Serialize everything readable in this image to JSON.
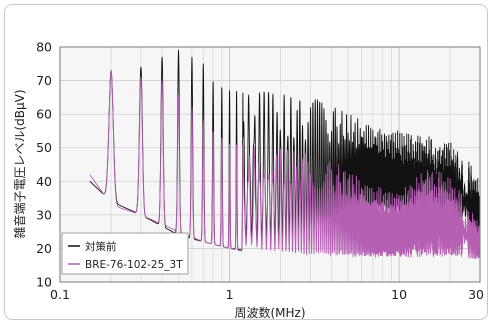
{
  "chart_data": {
    "type": "line",
    "title": "",
    "xlabel": "周波数(MHz)",
    "ylabel": "雑音端子電圧レベル(dBμV)",
    "x_scale": "log",
    "xlim": [
      0.1,
      30
    ],
    "ylim": [
      10,
      80
    ],
    "x_ticks": [
      0.1,
      1,
      10,
      30
    ],
    "x_tick_labels": [
      "0.1",
      "1",
      "10",
      "30"
    ],
    "y_ticks": [
      10,
      20,
      30,
      40,
      50,
      60,
      70,
      80
    ],
    "y_tick_labels": [
      "10",
      "20",
      "30",
      "40",
      "50",
      "60",
      "70",
      "80"
    ],
    "grid": true,
    "legend_position": "bottom-left",
    "series": [
      {
        "name": "対策前",
        "color": "#111111",
        "peaks_x": [
          0.2,
          0.3,
          0.4,
          0.5,
          0.6,
          0.7,
          0.8,
          0.9,
          1.0,
          1.1,
          1.5,
          2.0,
          3.0,
          5.0,
          10.0,
          15.0,
          20.0,
          30.0
        ],
        "peak_envelope_x": [
          0.15,
          0.2,
          0.3,
          0.4,
          0.5,
          0.6,
          0.7,
          0.8,
          0.9,
          1.0,
          1.5,
          2.0,
          2.5,
          3.0,
          4.0,
          5.0,
          7.0,
          10.0,
          15.0,
          20.0,
          25.0,
          30.0
        ],
        "peak_envelope_y": [
          47,
          73,
          74,
          77,
          79,
          77,
          75,
          70,
          68,
          67,
          67,
          66,
          65,
          65,
          63,
          60,
          57,
          55,
          54,
          53,
          47,
          40
        ],
        "floor_envelope_x": [
          0.15,
          0.2,
          0.3,
          0.5,
          0.7,
          1.0,
          1.5,
          2.0,
          3.0,
          5.0,
          7.0,
          10.0,
          15.0,
          20.0,
          30.0
        ],
        "floor_envelope_y": [
          40,
          34,
          30,
          24,
          22,
          20,
          19,
          19,
          22,
          28,
          30,
          28,
          26,
          24,
          22
        ]
      },
      {
        "name": "BRE-76-102-25_3T",
        "color": "#b560b3",
        "peaks_x": [
          0.2,
          0.3,
          0.4,
          0.5,
          0.6,
          0.7,
          0.8,
          0.9,
          1.0,
          1.1,
          1.5,
          2.0,
          3.0,
          5.0,
          10.0,
          15.0,
          20.0,
          30.0
        ],
        "peak_envelope_x": [
          0.15,
          0.2,
          0.3,
          0.4,
          0.5,
          0.6,
          0.7,
          0.8,
          0.9,
          1.0,
          1.5,
          2.0,
          3.0,
          5.0,
          7.0,
          10.0,
          15.0,
          20.0,
          25.0,
          30.0
        ],
        "peak_envelope_y": [
          45,
          73,
          71,
          70,
          66,
          62,
          58,
          55,
          53,
          51,
          51,
          50,
          48,
          44,
          39,
          37,
          45,
          41,
          35,
          27
        ],
        "floor_envelope_x": [
          0.15,
          0.2,
          0.3,
          0.5,
          0.7,
          1.0,
          1.5,
          2.0,
          3.0,
          5.0,
          10.0,
          15.0,
          20.0,
          30.0
        ],
        "floor_envelope_y": [
          42,
          33,
          30,
          25,
          22,
          20,
          18,
          17,
          16,
          16,
          16,
          16,
          16,
          16
        ]
      }
    ]
  }
}
